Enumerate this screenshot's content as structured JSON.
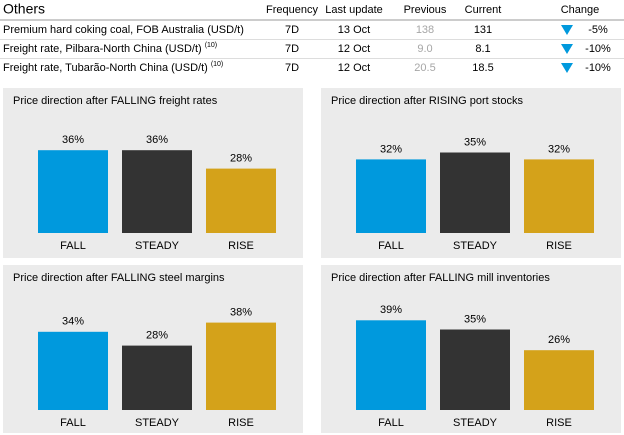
{
  "table": {
    "title": "Others",
    "columns": [
      "Frequency",
      "Last update",
      "Previous",
      "Current",
      "Change"
    ],
    "rows": [
      {
        "label": "Premium hard coking coal, FOB Australia (USD/t)",
        "note": null,
        "cells": [
          "7D",
          "13 Oct",
          "138",
          "131",
          "-5%"
        ]
      },
      {
        "label": "Freight rate, Pilbara-North China (USD/t)",
        "note": "(10)",
        "cells": [
          "7D",
          "12 Oct",
          "9.0",
          "8.1",
          "-10%"
        ]
      },
      {
        "label": "Freight rate, Tubarão-North China (USD/t)",
        "note": "(10)",
        "cells": [
          "7D",
          "12 Oct",
          "20.5",
          "18.5",
          "-10%"
        ]
      }
    ]
  },
  "chart_data": [
    {
      "type": "bar",
      "title": "Price direction after FALLING freight rates",
      "categories": [
        "FALL",
        "STEADY",
        "RISE"
      ],
      "values": [
        36,
        36,
        28
      ],
      "value_labels": [
        "36%",
        "36%",
        "28%"
      ],
      "colors": [
        "#0099dd",
        "#333333",
        "#d4a21a"
      ]
    },
    {
      "type": "bar",
      "title": "Price direction after RISING port stocks",
      "categories": [
        "FALL",
        "STEADY",
        "RISE"
      ],
      "values": [
        32,
        35,
        32
      ],
      "value_labels": [
        "32%",
        "35%",
        "32%"
      ],
      "colors": [
        "#0099dd",
        "#333333",
        "#d4a21a"
      ]
    },
    {
      "type": "bar",
      "title": "Price direction after FALLING steel margins",
      "categories": [
        "FALL",
        "STEADY",
        "RISE"
      ],
      "values": [
        34,
        28,
        38
      ],
      "value_labels": [
        "34%",
        "28%",
        "38%"
      ],
      "colors": [
        "#0099dd",
        "#333333",
        "#d4a21a"
      ]
    },
    {
      "type": "bar",
      "title": "Price direction after FALLING mill inventories",
      "categories": [
        "FALL",
        "STEADY",
        "RISE"
      ],
      "values": [
        39,
        35,
        26
      ],
      "value_labels": [
        "39%",
        "35%",
        "26%"
      ],
      "colors": [
        "#0099dd",
        "#333333",
        "#d4a21a"
      ]
    }
  ]
}
